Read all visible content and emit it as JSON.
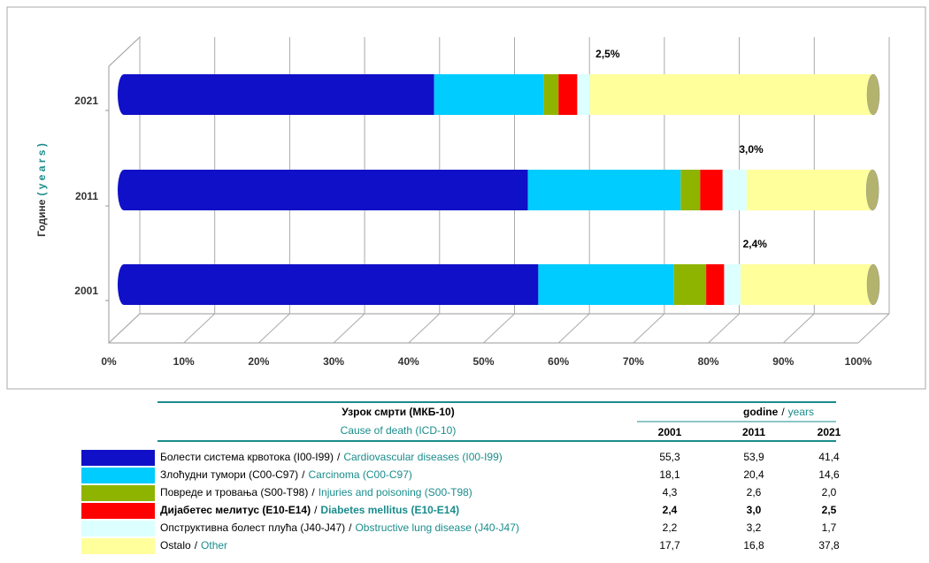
{
  "chart_data": {
    "type": "stacked_cylinder_bar",
    "y_label": "Године",
    "y_label_en": "( y e a r s )",
    "categories": [
      "2001",
      "2011",
      "2021"
    ],
    "series": [
      {
        "name_sr": "Болести система крвотока (I00-I99)",
        "name": "Cardiovascular diseases (I00-I99)",
        "color": "#1010c8",
        "values": [
          55.3,
          53.9,
          41.4
        ]
      },
      {
        "name_sr": "Злоћудни тумори (C00-C97)",
        "name": "Carcinoma (C00-C97)",
        "color": "#00ccff",
        "values": [
          18.1,
          20.4,
          14.6
        ]
      },
      {
        "name_sr": "Повреде и тровања (S00-T98)",
        "name": "Injuries and poisoning (S00-T98)",
        "color": "#8fb400",
        "values": [
          4.3,
          2.6,
          2.0
        ]
      },
      {
        "name_sr": "Дијабетес мелитус (E10-E14)",
        "name": "Diabetes mellitus (E10-E14)",
        "color": "#ff0000",
        "values": [
          2.4,
          3.0,
          2.5
        ],
        "value_labels": [
          "2,4%",
          "3,0%",
          "2,5%"
        ],
        "highlight": true
      },
      {
        "name_sr": "Опструктивна болест плућа (J40-J47)",
        "name": "Obstructive lung disease (J40-J47)",
        "color": "#dcffff",
        "values": [
          2.2,
          3.2,
          1.7
        ]
      },
      {
        "name_sr": "Ostalo",
        "name": "Other",
        "color": "#ffff9c",
        "values": [
          17.7,
          16.8,
          37.8
        ]
      }
    ],
    "xlim": [
      0,
      100
    ],
    "xticks": [
      {
        "value": 0,
        "label": "0%"
      },
      {
        "value": 10,
        "label": "10%"
      },
      {
        "value": 20,
        "label": "20%"
      },
      {
        "value": 30,
        "label": "30%"
      },
      {
        "value": 40,
        "label": "40%"
      },
      {
        "value": 50,
        "label": "50%"
      },
      {
        "value": 60,
        "label": "60%"
      },
      {
        "value": 70,
        "label": "70%"
      },
      {
        "value": 80,
        "label": "80%"
      },
      {
        "value": 90,
        "label": "90%"
      },
      {
        "value": 100,
        "label": "100%"
      }
    ],
    "grid": true
  },
  "table": {
    "header": {
      "cause_sr": "Узрок смрти (МКБ-10)",
      "cause_en": "Cause of death (ICD-10)",
      "years_sr": "godine",
      "years_en": "years",
      "separator": "/",
      "years": [
        "2001",
        "2011",
        "2021"
      ]
    },
    "rows": [
      {
        "values": [
          "55,3",
          "53,9",
          "41,4"
        ]
      },
      {
        "values": [
          "18,1",
          "20,4",
          "14,6"
        ]
      },
      {
        "values": [
          "4,3",
          "2,6",
          "2,0"
        ]
      },
      {
        "values": [
          "2,4",
          "3,0",
          "2,5"
        ]
      },
      {
        "values": [
          "2,2",
          "3,2",
          "1,7"
        ]
      },
      {
        "values": [
          "17,7",
          "16,8",
          "37,8"
        ]
      }
    ]
  }
}
